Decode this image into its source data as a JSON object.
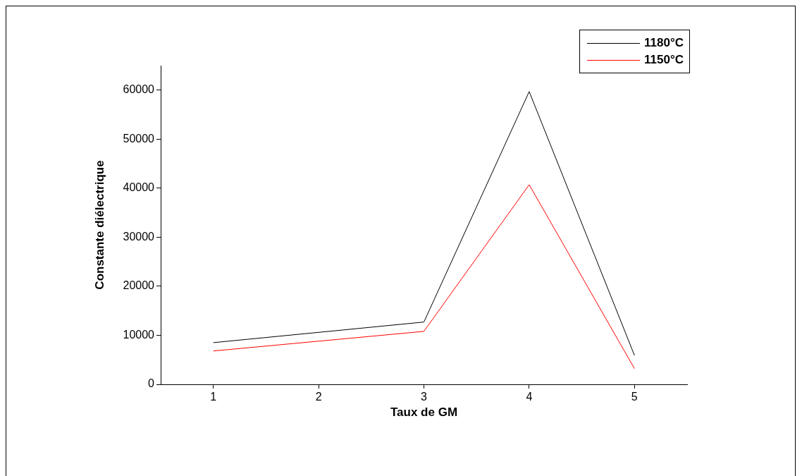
{
  "chart_data": {
    "type": "line",
    "xlabel": "Taux de GM",
    "ylabel": "Constante diélectrique",
    "x": [
      1,
      2,
      3,
      4,
      5
    ],
    "series": [
      {
        "name": "1180°C",
        "color": "#000000",
        "values": [
          8500,
          10600,
          12700,
          59700,
          5900
        ]
      },
      {
        "name": "1150°C",
        "color": "#ff0000",
        "values": [
          6800,
          8800,
          10800,
          40700,
          3200
        ]
      }
    ],
    "xlim": [
      0.5,
      5.5
    ],
    "xticks": [
      1,
      2,
      3,
      4,
      5
    ],
    "ylim": [
      0,
      65000
    ],
    "yticks": [
      0,
      10000,
      20000,
      30000,
      40000,
      50000,
      60000
    ],
    "grid": false,
    "legend": "top right",
    "marker": "none",
    "line_style": "solid"
  }
}
